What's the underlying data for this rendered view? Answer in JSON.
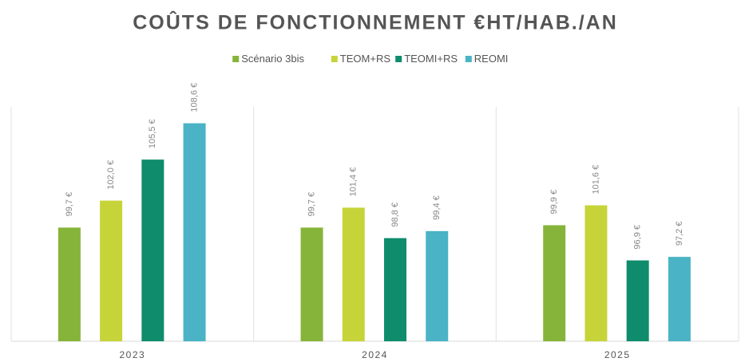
{
  "chart_data": {
    "type": "bar",
    "title": "COÛTS DE FONCTIONNEMENT €HT/HAB./AN",
    "categories": [
      "2023",
      "2024",
      "2025"
    ],
    "series": [
      {
        "name": "Scénario 3bis",
        "color": "#86b43a",
        "values": [
          99.7,
          99.7,
          99.9
        ],
        "value_labels": [
          "99,7 €",
          "99,7 €",
          "99,9 €"
        ]
      },
      {
        "name": "TEOM+RS",
        "color": "#c6d43a",
        "values": [
          102.0,
          101.4,
          101.6
        ],
        "value_labels": [
          "102,0 €",
          "101,4 €",
          "101,6 €"
        ]
      },
      {
        "name": "TEOMI+RS",
        "color": "#0f8c6c",
        "values": [
          105.5,
          98.8,
          96.9
        ],
        "value_labels": [
          "105,5 €",
          "98,8 €",
          "96,9 €"
        ]
      },
      {
        "name": "REOMI",
        "color": "#4ab3c6",
        "values": [
          108.6,
          99.4,
          97.2
        ],
        "value_labels": [
          "108,6 €",
          "99,4 €",
          "97,2 €"
        ]
      }
    ],
    "ylim": [
      90,
      110
    ],
    "legend": "top"
  }
}
